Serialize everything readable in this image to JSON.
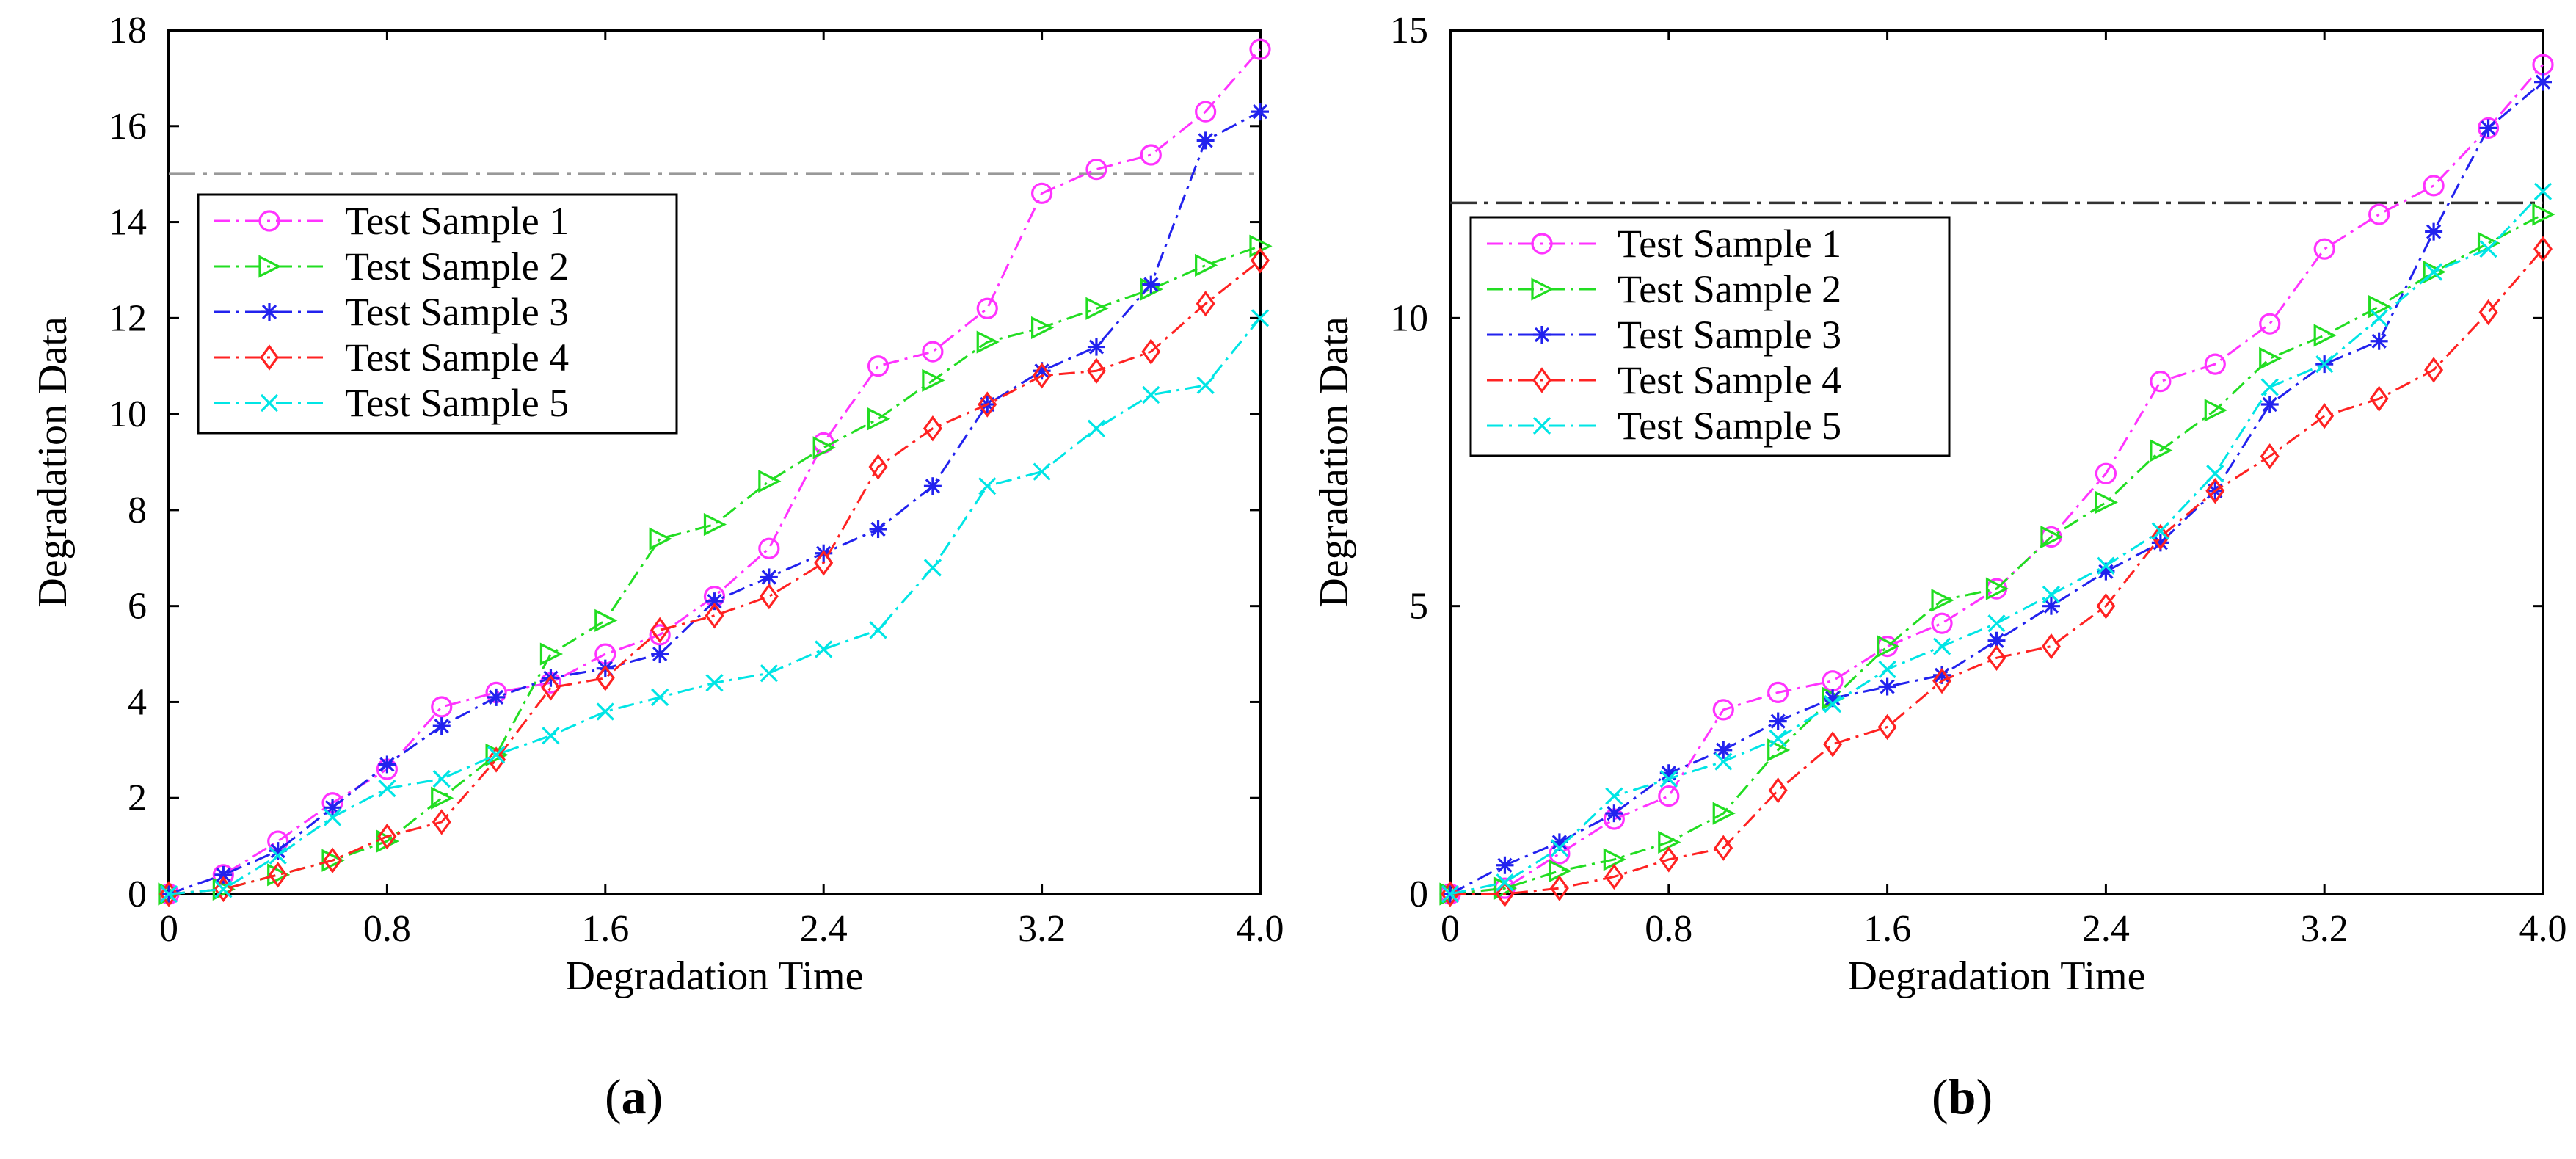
{
  "chart_data": [
    {
      "type": "line",
      "panel_label": "a",
      "xlabel": "Degradation Time",
      "ylabel": "Degradation Data",
      "xlim": [
        0,
        4.0
      ],
      "ylim": [
        0,
        18
      ],
      "x_ticks": [
        0,
        0.8,
        1.6,
        2.4,
        3.2,
        4.0
      ],
      "x_tick_labels": [
        "0",
        "0.8",
        "1.6",
        "2.4",
        "3.2",
        "4.0"
      ],
      "y_ticks": [
        0,
        2,
        4,
        6,
        8,
        10,
        12,
        14,
        16,
        18
      ],
      "y_tick_labels": [
        "0",
        "2",
        "4",
        "6",
        "8",
        "10",
        "12",
        "14",
        "16",
        "18"
      ],
      "threshold": 15,
      "threshold_color": "#999999",
      "legend_position": "upper-left",
      "x": [
        0,
        0.2,
        0.4,
        0.6,
        0.8,
        1.0,
        1.2,
        1.4,
        1.6,
        1.8,
        2.0,
        2.2,
        2.4,
        2.6,
        2.8,
        3.0,
        3.2,
        3.4,
        3.6,
        3.8,
        4.0
      ],
      "series": [
        {
          "name": "Test Sample 1",
          "color": "#ff33ff",
          "marker": "circle",
          "values": [
            0,
            0.4,
            1.1,
            1.9,
            2.6,
            3.9,
            4.2,
            4.4,
            5.0,
            5.4,
            6.2,
            7.2,
            9.4,
            11.0,
            11.3,
            12.2,
            14.6,
            15.1,
            15.4,
            16.3,
            17.6
          ]
        },
        {
          "name": "Test Sample 2",
          "color": "#22dd22",
          "marker": "triangle-right",
          "values": [
            0,
            0.1,
            0.4,
            0.7,
            1.1,
            2.0,
            2.9,
            5.0,
            5.7,
            7.4,
            7.7,
            8.6,
            9.3,
            9.9,
            10.7,
            11.5,
            11.8,
            12.2,
            12.6,
            13.1,
            13.5
          ]
        },
        {
          "name": "Test Sample 3",
          "color": "#2222ee",
          "marker": "asterisk",
          "values": [
            0,
            0.4,
            0.9,
            1.8,
            2.7,
            3.5,
            4.1,
            4.5,
            4.7,
            5.0,
            6.1,
            6.6,
            7.1,
            7.6,
            8.5,
            10.2,
            10.9,
            11.4,
            12.7,
            15.7,
            16.3
          ]
        },
        {
          "name": "Test Sample 4",
          "color": "#ff2222",
          "marker": "diamond",
          "values": [
            0,
            0.1,
            0.4,
            0.7,
            1.2,
            1.5,
            2.8,
            4.3,
            4.5,
            5.5,
            5.8,
            6.2,
            6.9,
            8.9,
            9.7,
            10.2,
            10.8,
            10.9,
            11.3,
            12.3,
            13.2
          ]
        },
        {
          "name": "Test Sample 5",
          "color": "#00e5e5",
          "marker": "x",
          "values": [
            0,
            0.1,
            0.8,
            1.6,
            2.2,
            2.4,
            2.9,
            3.3,
            3.8,
            4.1,
            4.4,
            4.6,
            5.1,
            5.5,
            6.8,
            8.5,
            8.8,
            9.7,
            10.4,
            10.6,
            12.0
          ]
        }
      ]
    },
    {
      "type": "line",
      "panel_label": "b",
      "xlabel": "Degradation Time",
      "ylabel": "Degradation Data",
      "xlim": [
        0,
        4.0
      ],
      "ylim": [
        0,
        15
      ],
      "x_ticks": [
        0,
        0.8,
        1.6,
        2.4,
        3.2,
        4.0
      ],
      "x_tick_labels": [
        "0",
        "0.8",
        "1.6",
        "2.4",
        "3.2",
        "4.0"
      ],
      "y_ticks": [
        0,
        5,
        10,
        15
      ],
      "y_tick_labels": [
        "0",
        "5",
        "10",
        "15"
      ],
      "threshold": 12,
      "threshold_color": "#333333",
      "legend_position": "upper-left",
      "x": [
        0,
        0.2,
        0.4,
        0.6,
        0.8,
        1.0,
        1.2,
        1.4,
        1.6,
        1.8,
        2.0,
        2.2,
        2.4,
        2.6,
        2.8,
        3.0,
        3.2,
        3.4,
        3.6,
        3.8,
        4.0
      ],
      "series": [
        {
          "name": "Test Sample 1",
          "color": "#ff33ff",
          "marker": "circle",
          "values": [
            0,
            0.1,
            0.7,
            1.3,
            1.7,
            3.2,
            3.5,
            3.7,
            4.3,
            4.7,
            5.3,
            6.2,
            7.3,
            8.9,
            9.2,
            9.9,
            11.2,
            11.8,
            12.3,
            13.3,
            14.4
          ]
        },
        {
          "name": "Test Sample 2",
          "color": "#22dd22",
          "marker": "triangle-right",
          "values": [
            0,
            0.1,
            0.4,
            0.6,
            0.9,
            1.4,
            2.5,
            3.4,
            4.3,
            5.1,
            5.3,
            6.2,
            6.8,
            7.7,
            8.4,
            9.3,
            9.7,
            10.2,
            10.8,
            11.3,
            11.8
          ]
        },
        {
          "name": "Test Sample 3",
          "color": "#2222ee",
          "marker": "asterisk",
          "values": [
            0,
            0.5,
            0.9,
            1.4,
            2.1,
            2.5,
            3.0,
            3.4,
            3.6,
            3.8,
            4.4,
            5.0,
            5.6,
            6.1,
            7.0,
            8.5,
            9.2,
            9.6,
            11.5,
            13.3,
            14.1
          ]
        },
        {
          "name": "Test Sample 4",
          "color": "#ff2222",
          "marker": "diamond",
          "values": [
            0,
            0.0,
            0.1,
            0.3,
            0.6,
            0.8,
            1.8,
            2.6,
            2.9,
            3.7,
            4.1,
            4.3,
            5.0,
            6.2,
            7.0,
            7.6,
            8.3,
            8.6,
            9.1,
            10.1,
            11.2
          ]
        },
        {
          "name": "Test Sample 5",
          "color": "#00e5e5",
          "marker": "x",
          "values": [
            0,
            0.2,
            0.8,
            1.7,
            2.0,
            2.3,
            2.7,
            3.3,
            3.9,
            4.3,
            4.7,
            5.2,
            5.7,
            6.3,
            7.3,
            8.8,
            9.2,
            10.0,
            10.8,
            11.2,
            12.2
          ]
        }
      ]
    }
  ]
}
